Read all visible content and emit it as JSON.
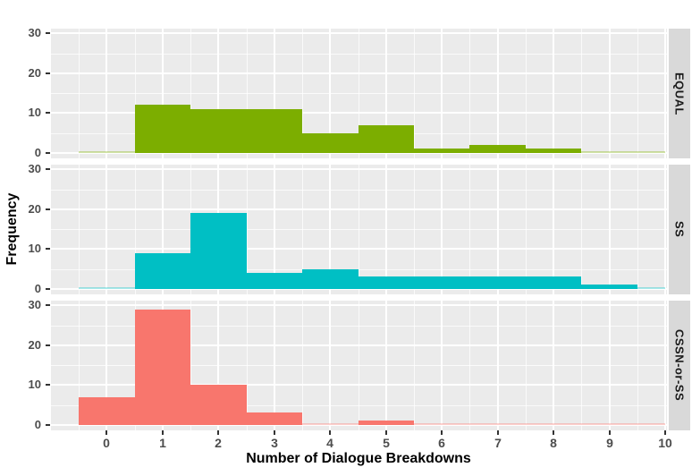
{
  "chart_data": {
    "type": "bar",
    "variant": "faceted-histogram",
    "title": "",
    "xlabel": "Number of Dialogue Breakdowns",
    "ylabel": "Frequency",
    "x_ticks": [
      0,
      1,
      2,
      3,
      4,
      5,
      6,
      7,
      8,
      9,
      10
    ],
    "y_ticks": [
      0,
      10,
      20,
      30
    ],
    "xlim": [
      -1,
      10.03
    ],
    "ylim": [
      -1.4,
      31.2
    ],
    "bin_width": 1,
    "grid": "white major gridlines at integers / 10s, white minor gridlines at half-integers / 5s, on gray panel",
    "legend": "none (facet strips on right)",
    "facets": [
      {
        "label": "EQUAL",
        "color": "#7CAE00",
        "bin_centers": [
          1,
          2,
          3,
          4,
          5,
          6,
          7,
          8
        ],
        "counts": [
          12,
          11,
          11,
          5,
          7,
          1,
          2,
          1
        ]
      },
      {
        "label": "SS",
        "color": "#00BFC4",
        "bin_centers": [
          1,
          2,
          3,
          4,
          5,
          6,
          7,
          8,
          9
        ],
        "counts": [
          9,
          19,
          4,
          5,
          3,
          3,
          3,
          3,
          1
        ]
      },
      {
        "label": "CSSN-or-SS",
        "color": "#F8766D",
        "bin_centers": [
          0,
          1,
          2,
          3,
          4,
          5
        ],
        "counts": [
          7,
          29,
          10,
          3,
          0,
          1
        ]
      }
    ]
  },
  "style": {
    "background": "#FFFFFF",
    "panel_bg": "#EBEBEB",
    "grid_color": "#FFFFFF",
    "strip_bg": "#D9D9D9",
    "strip_text_color": "#1A1A1A",
    "axis_text_color": "#4D4D4D",
    "axis_title_color": "#000000",
    "tick_mark_color": "#333333"
  }
}
